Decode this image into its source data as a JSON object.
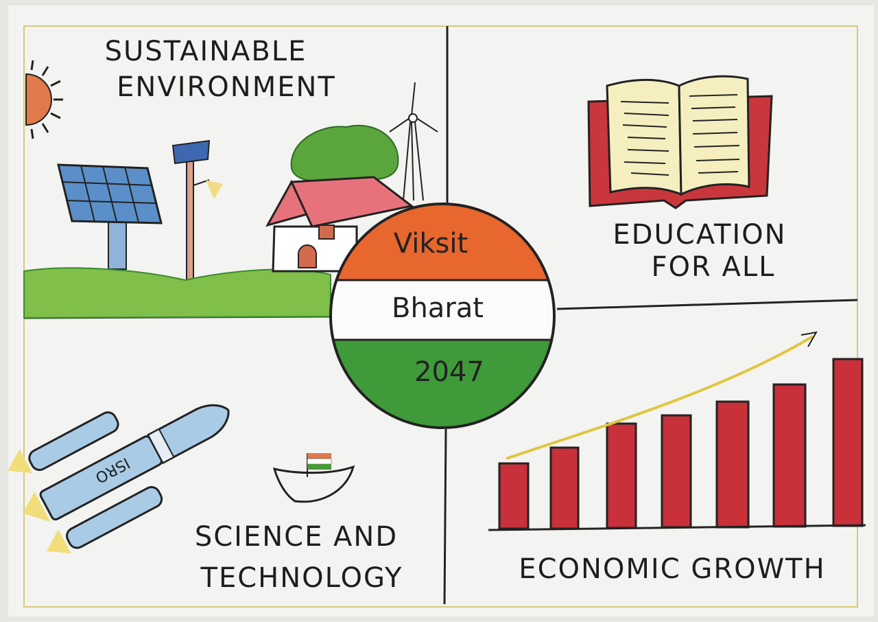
{
  "center": {
    "line1": "Viksit",
    "line2": "Bharat",
    "line3": "2047"
  },
  "panels": [
    {
      "title": [
        "SUSTAINABLE",
        "ENVIRONMENT"
      ]
    },
    {
      "title": [
        "EDUCATION",
        "FOR ALL"
      ]
    },
    {
      "title": [
        "SCIENCE AND",
        "TECHNOLOGY"
      ],
      "rocket_label": "ISRO"
    },
    {
      "title": [
        "ECONOMIC GROWTH"
      ]
    }
  ]
}
